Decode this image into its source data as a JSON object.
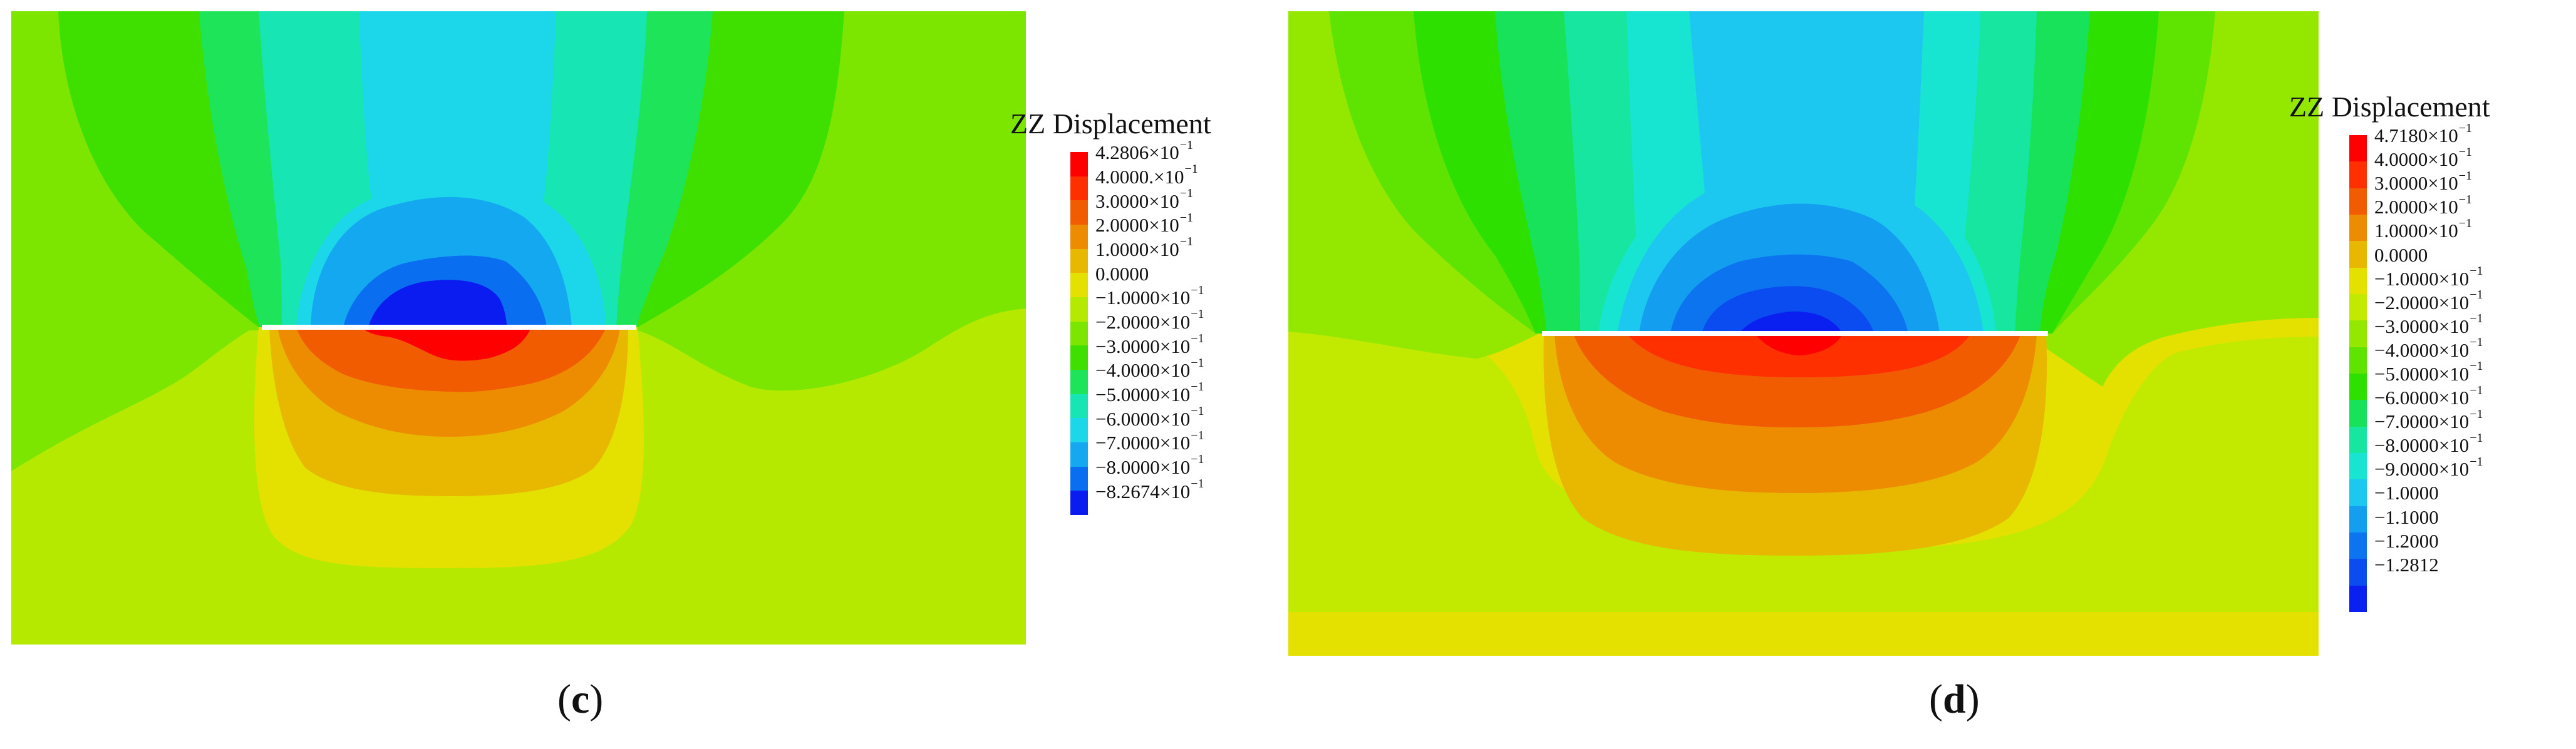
{
  "panels": [
    {
      "id": "c",
      "caption_open": "(",
      "caption_letter": "c",
      "caption_close": ")",
      "legend": {
        "title": "ZZ Displacement",
        "labels": [
          {
            "mantissa": "4.2806×10",
            "exp": "−1"
          },
          {
            "mantissa": "4.0000.×10",
            "exp": "−1"
          },
          {
            "mantissa": "3.0000×10",
            "exp": "−1"
          },
          {
            "mantissa": "2.0000×10",
            "exp": "−1"
          },
          {
            "mantissa": "1.0000×10",
            "exp": "−1"
          },
          {
            "mantissa": "0.0000",
            "exp": ""
          },
          {
            "mantissa": "−1.0000×10",
            "exp": "−1"
          },
          {
            "mantissa": "−2.0000×10",
            "exp": "−1"
          },
          {
            "mantissa": "−3.0000×10",
            "exp": "−1"
          },
          {
            "mantissa": "−4.0000×10",
            "exp": "−1"
          },
          {
            "mantissa": "−5.0000×10",
            "exp": "−1"
          },
          {
            "mantissa": "−6.0000×10",
            "exp": "−1"
          },
          {
            "mantissa": "−7.0000×10",
            "exp": "−1"
          },
          {
            "mantissa": "−8.0000×10",
            "exp": "−1"
          },
          {
            "mantissa": "−8.2674×10",
            "exp": "−1"
          }
        ],
        "colors": [
          "#ff0000",
          "#ff3000",
          "#f25c00",
          "#ee8c00",
          "#e8b800",
          "#e4e000",
          "#b5ea00",
          "#7ce600",
          "#3fe000",
          "#1ee45a",
          "#17e6b4",
          "#1cd7ea",
          "#14a8f0",
          "#0a6ef0",
          "#0a1cf0"
        ]
      }
    },
    {
      "id": "d",
      "caption_open": "(",
      "caption_letter": "d",
      "caption_close": ")",
      "legend": {
        "title": "ZZ Displacement",
        "labels": [
          {
            "mantissa": "4.7180×10",
            "exp": "−1"
          },
          {
            "mantissa": "4.0000×10",
            "exp": "−1"
          },
          {
            "mantissa": "3.0000×10",
            "exp": "−1"
          },
          {
            "mantissa": "2.0000×10",
            "exp": "−1"
          },
          {
            "mantissa": "1.0000×10",
            "exp": "−1"
          },
          {
            "mantissa": "0.0000",
            "exp": ""
          },
          {
            "mantissa": "−1.0000×10",
            "exp": "−1"
          },
          {
            "mantissa": "−2.0000×10",
            "exp": "−1"
          },
          {
            "mantissa": "−3.0000×10",
            "exp": "−1"
          },
          {
            "mantissa": "−4.0000×10",
            "exp": "−1"
          },
          {
            "mantissa": "−5.0000×10",
            "exp": "−1"
          },
          {
            "mantissa": "−6.0000×10",
            "exp": "−1"
          },
          {
            "mantissa": "−7.0000×10",
            "exp": "−1"
          },
          {
            "mantissa": "−8.0000×10",
            "exp": "−1"
          },
          {
            "mantissa": "−9.0000×10",
            "exp": "−1"
          },
          {
            "mantissa": "−1.0000",
            "exp": ""
          },
          {
            "mantissa": "−1.1000",
            "exp": ""
          },
          {
            "mantissa": "−1.2000",
            "exp": ""
          },
          {
            "mantissa": "−1.2812",
            "exp": ""
          }
        ],
        "colors": [
          "#ff0000",
          "#ff3000",
          "#f25c00",
          "#ee8c00",
          "#e8b800",
          "#e4e000",
          "#c2ea00",
          "#94e800",
          "#5ee400",
          "#2de000",
          "#18e25a",
          "#16e6a0",
          "#18e4d2",
          "#1cc8f0",
          "#149ef0",
          "#0d74f0",
          "#0b4cf0",
          "#0a20f0"
        ]
      }
    }
  ]
}
